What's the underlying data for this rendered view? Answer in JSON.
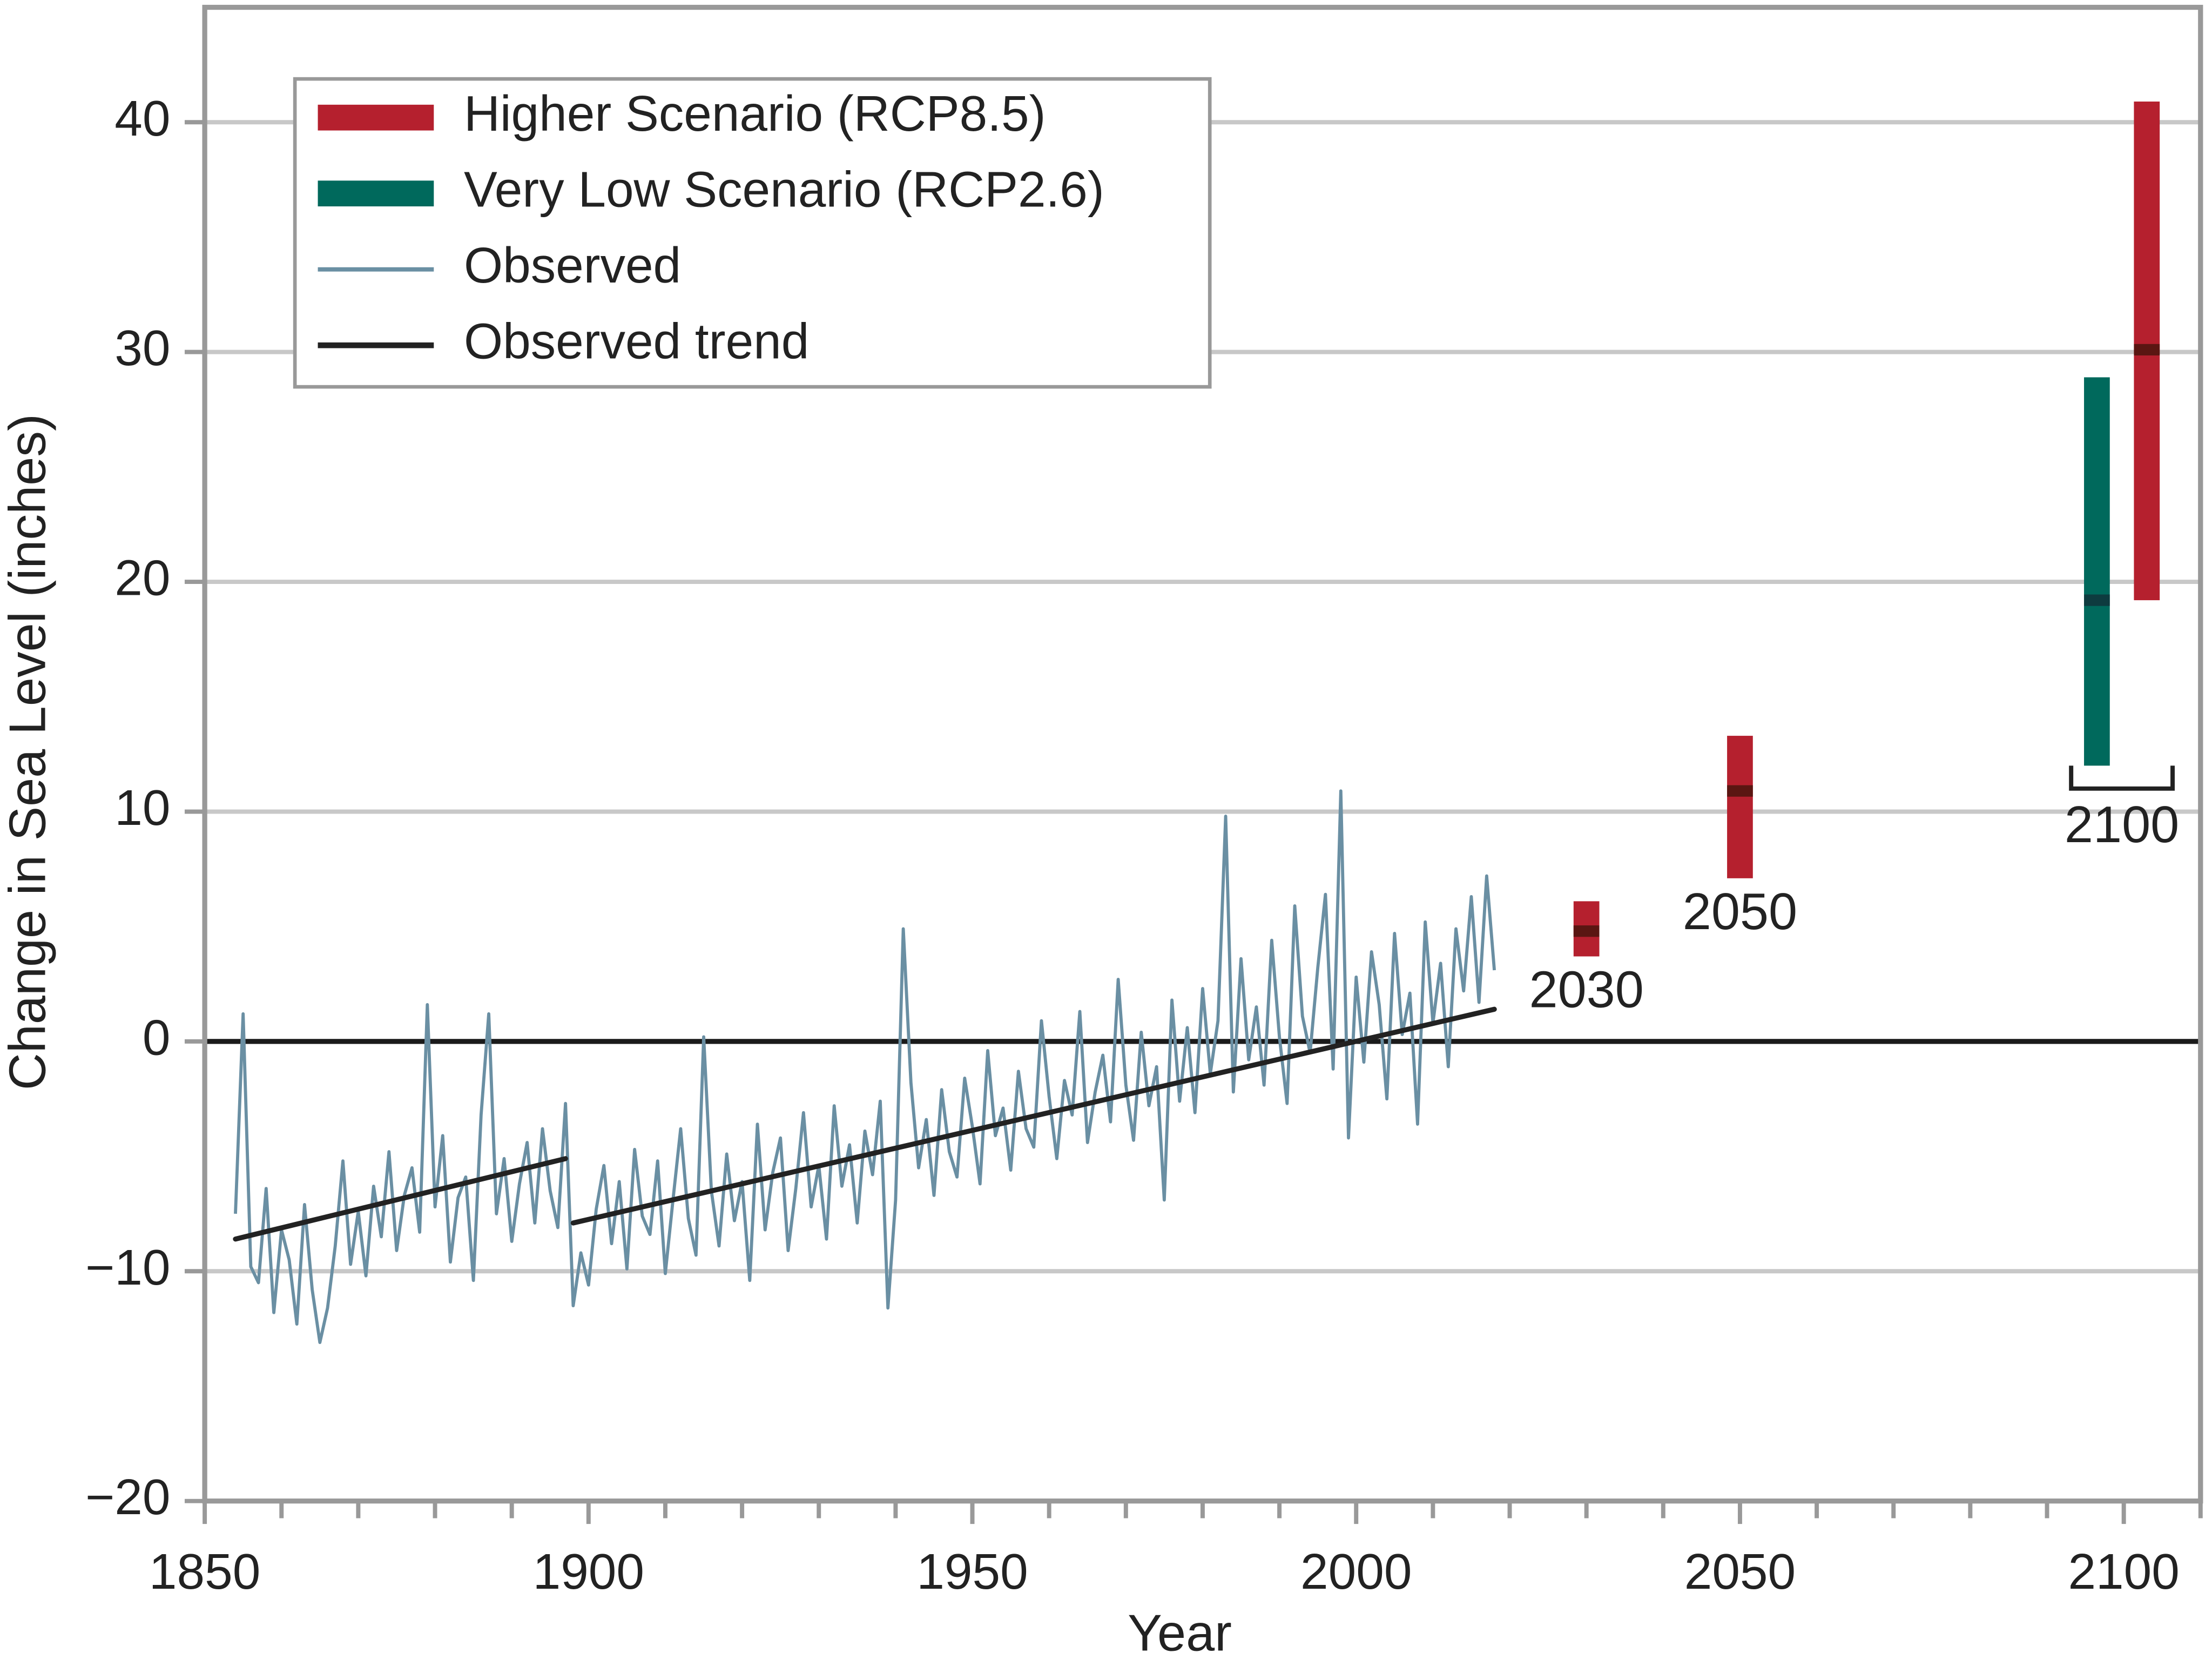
{
  "chart_data": {
    "type": "line",
    "xlabel": "Year",
    "ylabel": "Change in Sea Level (inches)",
    "xlim": [
      1850,
      2110
    ],
    "ylim": [
      -20,
      45
    ],
    "xticks": [
      1850,
      1900,
      1950,
      2000,
      2050,
      2100
    ],
    "xminorticks": [
      1860,
      1870,
      1880,
      1890,
      1910,
      1920,
      1930,
      1940,
      1960,
      1970,
      1980,
      1990,
      2010,
      2020,
      2030,
      2040,
      2060,
      2070,
      2080,
      2090,
      2110
    ],
    "yticks": [
      {
        "value": -20,
        "label": "−20"
      },
      {
        "value": -10,
        "label": "−10"
      },
      0,
      10,
      20,
      30,
      40
    ],
    "grid": true,
    "legend": "upper left",
    "observed": {
      "name": "Observed",
      "color": "#6a8fa3",
      "x": [
        1854,
        1855,
        1856,
        1857,
        1858,
        1859,
        1860,
        1861,
        1862,
        1863,
        1864,
        1865,
        1866,
        1867,
        1868,
        1869,
        1870,
        1871,
        1872,
        1873,
        1874,
        1875,
        1876,
        1877,
        1878,
        1879,
        1880,
        1881,
        1882,
        1883,
        1884,
        1885,
        1886,
        1887,
        1888,
        1889,
        1890,
        1891,
        1892,
        1893,
        1894,
        1895,
        1896,
        1897,
        1898,
        1899,
        1900,
        1901,
        1902,
        1903,
        1904,
        1905,
        1906,
        1907,
        1908,
        1909,
        1910,
        1911,
        1912,
        1913,
        1914,
        1915,
        1916,
        1917,
        1918,
        1919,
        1920,
        1921,
        1922,
        1923,
        1924,
        1925,
        1926,
        1927,
        1928,
        1929,
        1930,
        1931,
        1932,
        1933,
        1934,
        1935,
        1936,
        1937,
        1938,
        1939,
        1940,
        1941,
        1942,
        1943,
        1944,
        1945,
        1946,
        1947,
        1948,
        1949,
        1950,
        1951,
        1952,
        1953,
        1954,
        1955,
        1956,
        1957,
        1958,
        1959,
        1960,
        1961,
        1962,
        1963,
        1964,
        1965,
        1966,
        1967,
        1968,
        1969,
        1970,
        1971,
        1972,
        1973,
        1974,
        1975,
        1976,
        1977,
        1978,
        1979,
        1980,
        1981,
        1982,
        1983,
        1984,
        1985,
        1986,
        1987,
        1988,
        1989,
        1990,
        1991,
        1992,
        1993,
        1994,
        1995,
        1996,
        1997,
        1998,
        1999,
        2000,
        2001,
        2002,
        2003,
        2004,
        2005,
        2006,
        2007,
        2008,
        2009,
        2010,
        2011,
        2012,
        2013,
        2014,
        2015,
        2016,
        2017,
        2018
      ],
      "values": [
        -7.5,
        1.2,
        -9.8,
        -10.5,
        -6.4,
        -11.8,
        -8.2,
        -9.5,
        -12.3,
        -7.1,
        -10.8,
        -13.1,
        -11.6,
        -8.9,
        -5.2,
        -9.7,
        -7.4,
        -10.2,
        -6.3,
        -8.5,
        -4.8,
        -9.1,
        -6.7,
        -5.5,
        -8.3,
        1.6,
        -7.2,
        -4.1,
        -9.6,
        -6.8,
        -5.9,
        -10.4,
        -3.2,
        1.2,
        -7.5,
        -5.1,
        -8.7,
        -6.2,
        -4.4,
        -7.9,
        -3.8,
        -6.5,
        -8.1,
        -2.7,
        -11.5,
        -9.2,
        -10.6,
        -7.3,
        -5.4,
        -8.8,
        -6.1,
        -9.9,
        -4.7,
        -7.6,
        -8.4,
        -5.2,
        -10.1,
        -6.9,
        -3.8,
        -7.7,
        -9.3,
        0.2,
        -6.5,
        -8.9,
        -4.9,
        -7.8,
        -6.1,
        -10.4,
        -3.6,
        -8.2,
        -5.7,
        -4.2,
        -9.1,
        -6.4,
        -3.1,
        -7.2,
        -5.4,
        -8.6,
        -2.8,
        -6.3,
        -4.5,
        -7.9,
        -3.9,
        -5.8,
        -2.6,
        -11.6,
        -6.9,
        4.9,
        -1.8,
        -5.5,
        -3.4,
        -6.7,
        -2.1,
        -4.8,
        -5.9,
        -1.6,
        -3.7,
        -6.2,
        -0.4,
        -4.1,
        -2.9,
        -5.6,
        -1.3,
        -3.8,
        -4.6,
        0.9,
        -2.4,
        -5.1,
        -1.7,
        -3.2,
        1.3,
        -4.4,
        -2.2,
        -0.6,
        -3.5,
        2.7,
        -1.9,
        -4.3,
        0.4,
        -2.8,
        -1.1,
        -6.9,
        1.8,
        -2.6,
        0.6,
        -3.1,
        2.3,
        -1.4,
        0.9,
        9.8,
        -2.2,
        3.6,
        -0.8,
        1.5,
        -1.9,
        4.4,
        0.2,
        -2.7,
        5.9,
        1.1,
        -0.5,
        3.2,
        6.4,
        -1.2,
        10.9,
        -4.2,
        2.8,
        -0.9,
        3.9,
        1.6,
        -2.5,
        4.7,
        0.3,
        2.1,
        -3.6,
        5.2,
        0.8,
        3.4,
        -1.1,
        4.9,
        2.2,
        6.3,
        1.7,
        7.2,
        3.1
      ]
    },
    "trend": {
      "name": "Observed trend",
      "color": "#222222",
      "segments": [
        {
          "x": [
            1854,
            1897
          ],
          "values": [
            -8.6,
            -5.1
          ]
        },
        {
          "x": [
            1898,
            2018
          ],
          "values": [
            -7.9,
            1.4
          ]
        }
      ]
    },
    "projections": [
      {
        "name": "Higher Scenario (RCP8.5)",
        "color": "#b5202e",
        "median_color": "#5a1612",
        "x": [
          2030,
          2050,
          2103
        ],
        "low": [
          3.7,
          7.1,
          19.2
        ],
        "median": [
          4.8,
          10.9,
          30.1
        ],
        "high": [
          6.1,
          13.3,
          40.9
        ]
      },
      {
        "name": "Very Low Scenario (RCP2.6)",
        "color": "#00695c",
        "median_color": "#0e3b3f",
        "x": [
          2096.5
        ],
        "low": [
          12.0
        ],
        "median": [
          19.2
        ],
        "high": [
          28.9
        ]
      }
    ],
    "annotations": [
      {
        "text": "2030",
        "x": 2030,
        "bracket": false
      },
      {
        "text": "2050",
        "x": 2050,
        "bracket": false
      },
      {
        "text": "2100",
        "x": 2100,
        "bracket": true
      }
    ]
  }
}
